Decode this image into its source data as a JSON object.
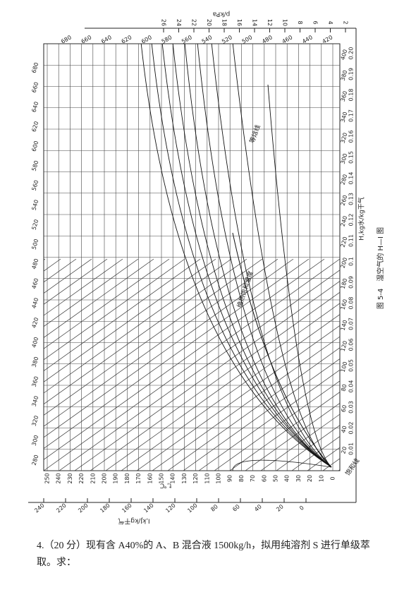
{
  "figure": {
    "p_axis_label": "p/kPa",
    "p_ticks": [
      "26",
      "24",
      "22",
      "20",
      "18",
      "16",
      "14",
      "12",
      "10",
      "8",
      "6",
      "4",
      "2"
    ],
    "top_i_ticks": [
      "680",
      "660",
      "640",
      "620",
      "600",
      "580",
      "560",
      "540",
      "520",
      "500",
      "480",
      "460",
      "440",
      "420"
    ],
    "left_i_ticks": [
      "280",
      "300",
      "320",
      "340",
      "360",
      "380",
      "400",
      "420",
      "440",
      "460",
      "480",
      "500",
      "520",
      "540",
      "560",
      "580",
      "600",
      "620",
      "640",
      "660",
      "680"
    ],
    "right_i_ticks": [
      "20",
      "40",
      "60",
      "80",
      "100",
      "120",
      "140",
      "160",
      "180",
      "200",
      "220",
      "240",
      "260",
      "280",
      "300",
      "320",
      "340",
      "360",
      "380",
      "400"
    ],
    "h_ticks": [
      "0.01",
      "0.02",
      "0.03",
      "0.04",
      "0.05",
      "0.06",
      "0.07",
      "0.08",
      "0.09",
      "0.1",
      "0.11",
      "0.12",
      "0.13",
      "0.14",
      "0.15",
      "0.16",
      "0.17",
      "0.18",
      "0.19",
      "0.20"
    ],
    "h_axis_label": "H,kg水/kg干气",
    "t_ticks": [
      "0",
      "10",
      "20",
      "30",
      "40",
      "50",
      "60",
      "70",
      "80",
      "90",
      "100",
      "110",
      "120",
      "130",
      "140",
      "150",
      "160",
      "170",
      "180",
      "190",
      "200",
      "210",
      "220",
      "230",
      "240",
      "250"
    ],
    "t_axis_label": "t,℃",
    "bottom_i_ticks": [
      "240",
      "220",
      "200",
      "180",
      "160",
      "140",
      "120",
      "100",
      "80",
      "60",
      "40",
      "20",
      "0"
    ],
    "i_axis_label": "I,kJ/kg干气",
    "isenthalpic_label": "等焓线",
    "adiabatic_label": "绝热饱和温度",
    "saturation_label": "饱和线",
    "caption": "图 5-4　湿空气的 H—I 图"
  },
  "question": {
    "text": "4.（20 分）现有含 A40%的 A、B 混合液 1500kg/h，拟用纯溶剂 S 进行单级萃取。求："
  }
}
